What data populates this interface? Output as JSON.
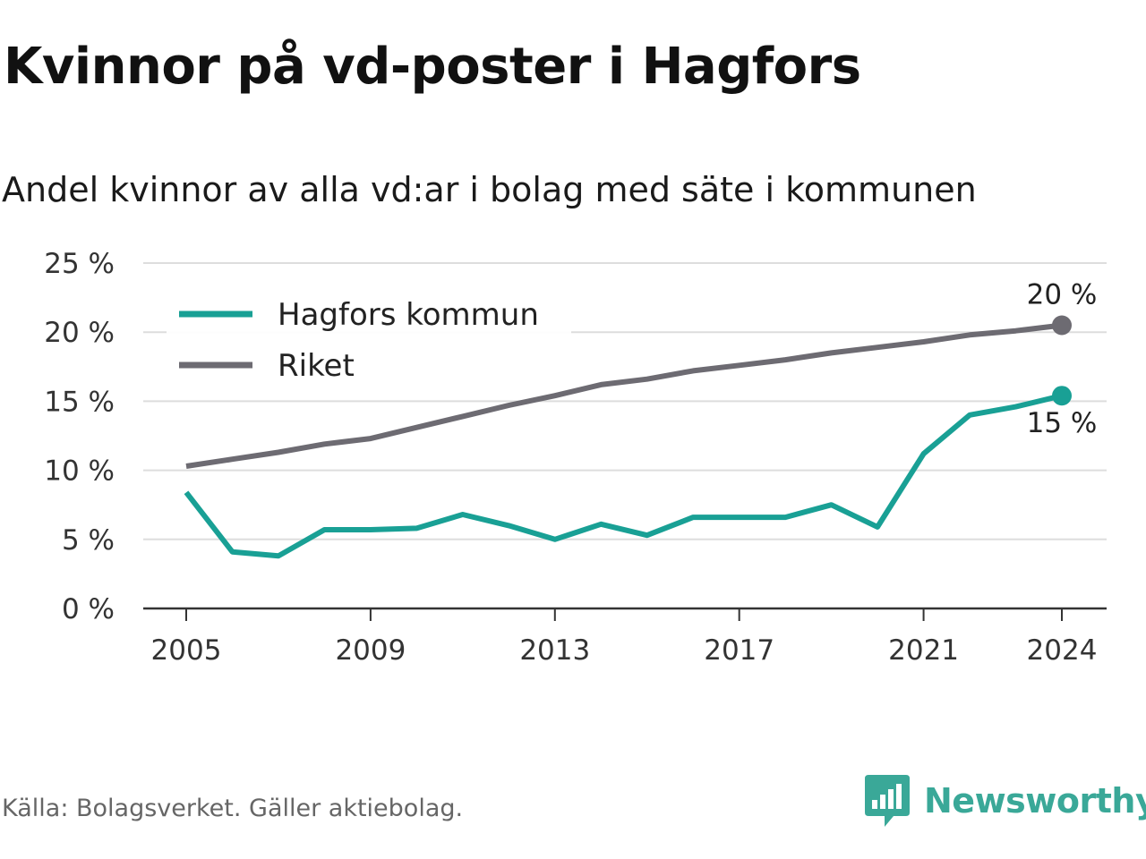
{
  "title": "Kvinnor på vd-poster i Hagfors",
  "subtitle": "Andel kvinnor av alla vd:ar i bolag med säte i kommunen",
  "source": "Källa: Bolagsverket. Gäller aktiebolag.",
  "brand": {
    "name": "Newsworthy",
    "icon": "newsworthy-logo-icon",
    "color": "#3aa898"
  },
  "chart_data": {
    "type": "line",
    "ylim": [
      0,
      25
    ],
    "yticks": [
      0,
      5,
      10,
      15,
      20,
      25
    ],
    "ytick_labels": [
      "0 %",
      "5 %",
      "10 %",
      "15 %",
      "20 %",
      "25 %"
    ],
    "xlim": [
      2005,
      2024
    ],
    "xticks": [
      2005,
      2009,
      2013,
      2017,
      2021,
      2024
    ],
    "xtick_labels": [
      "2005",
      "2009",
      "2013",
      "2017",
      "2021",
      "2024"
    ],
    "grid": true,
    "legend_position": "top-left",
    "x": [
      2005,
      2006,
      2007,
      2008,
      2009,
      2010,
      2011,
      2012,
      2013,
      2014,
      2015,
      2016,
      2017,
      2018,
      2019,
      2020,
      2021,
      2022,
      2023,
      2024
    ],
    "series": [
      {
        "name": "Hagfors kommun",
        "color": "#19a095",
        "values": [
          8.4,
          4.1,
          3.8,
          5.7,
          5.7,
          5.8,
          6.8,
          6.0,
          5.0,
          6.1,
          5.3,
          6.6,
          6.6,
          6.6,
          7.5,
          5.9,
          11.2,
          14.0,
          14.6,
          15.4
        ],
        "end_label": "15 %"
      },
      {
        "name": "Riket",
        "color": "#6d6b72",
        "values": [
          10.3,
          10.8,
          11.3,
          11.9,
          12.3,
          13.1,
          13.9,
          14.7,
          15.4,
          16.2,
          16.6,
          17.2,
          17.6,
          18.0,
          18.5,
          18.9,
          19.3,
          19.8,
          20.1,
          20.5
        ],
        "end_label": "20 %"
      }
    ]
  }
}
